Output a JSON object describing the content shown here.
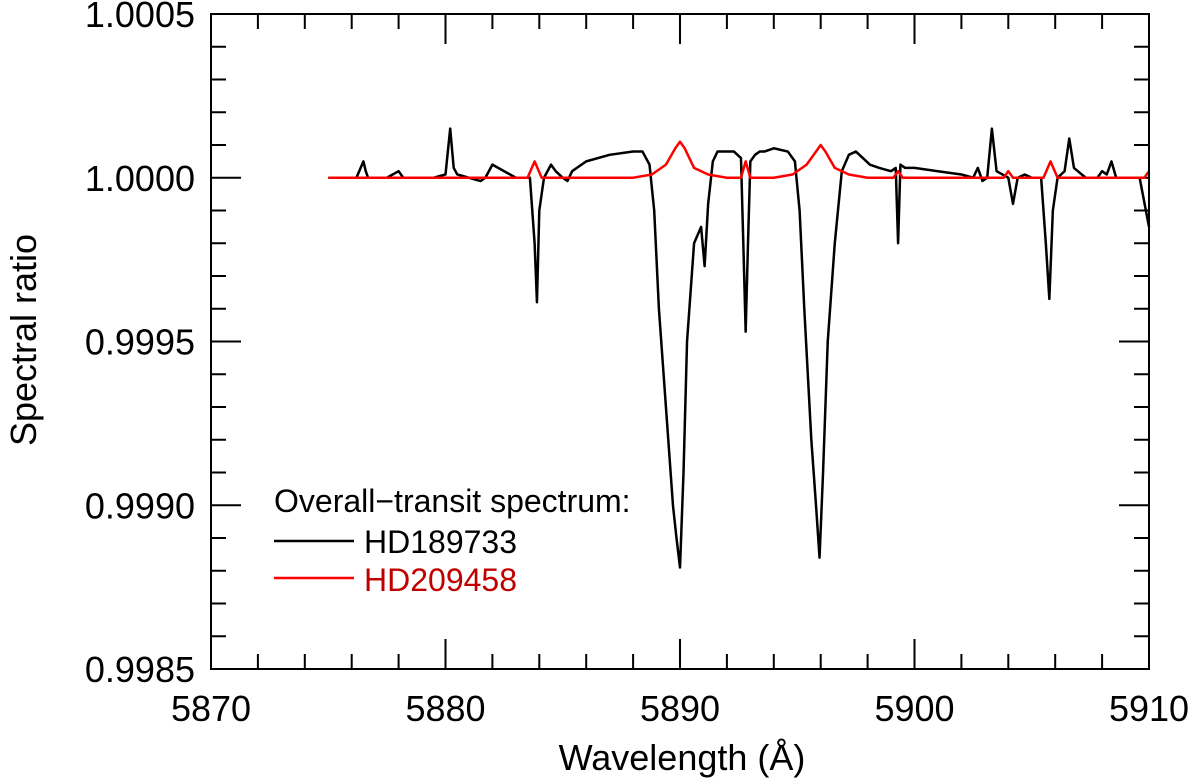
{
  "chart_data": {
    "type": "line",
    "xlabel": "Wavelength (Å)",
    "ylabel": "Spectral ratio",
    "xlim": [
      5870,
      5910
    ],
    "ylim": [
      0.9985,
      1.0005
    ],
    "x_ticks": [
      5870,
      5880,
      5890,
      5900,
      5910
    ],
    "x_tick_labels": [
      "5870",
      "5880",
      "5890",
      "5900",
      "5910"
    ],
    "y_ticks": [
      0.9985,
      0.999,
      0.9995,
      1.0,
      1.0005
    ],
    "y_tick_labels": [
      "0.9985",
      "0.9990",
      "0.9995",
      "1.0000",
      "1.0005"
    ],
    "x_minor_step": 2,
    "y_minor_step": 0.0001,
    "legend": {
      "title": "Overall−transit spectrum:",
      "placement": "lower-left"
    },
    "series": [
      {
        "name": "HD189733",
        "color": "#000000",
        "x": [
          5875.0,
          5876.2,
          5876.5,
          5876.6,
          5876.7,
          5877.5,
          5878.0,
          5878.1,
          5878.2,
          5879.5,
          5880.0,
          5880.2,
          5880.35,
          5880.5,
          5881.0,
          5881.5,
          5881.7,
          5882.0,
          5883.0,
          5883.6,
          5883.8,
          5883.9,
          5884.0,
          5884.2,
          5884.5,
          5884.7,
          5885.0,
          5885.2,
          5885.4,
          5886.0,
          5887.0,
          5888.0,
          5888.4,
          5888.7,
          5888.9,
          5889.1,
          5889.4,
          5889.7,
          5889.85,
          5890.0,
          5890.15,
          5890.3,
          5890.6,
          5890.9,
          5891.05,
          5891.2,
          5891.4,
          5891.6,
          5891.9,
          5892.3,
          5892.6,
          5892.7,
          5892.8,
          5892.9,
          5893.0,
          5893.2,
          5893.4,
          5893.6,
          5894.0,
          5894.6,
          5894.9,
          5895.1,
          5895.3,
          5895.6,
          5895.8,
          5895.95,
          5896.1,
          5896.3,
          5896.6,
          5896.9,
          5897.2,
          5897.5,
          5897.8,
          5898.1,
          5898.5,
          5899.0,
          5899.2,
          5899.3,
          5899.4,
          5899.6,
          5900.0,
          5901.0,
          5902.0,
          5902.5,
          5902.7,
          5902.9,
          5903.1,
          5903.3,
          5903.5,
          5904.0,
          5904.2,
          5904.4,
          5904.7,
          5905.0,
          5905.4,
          5905.6,
          5905.75,
          5905.9,
          5906.1,
          5906.4,
          5906.6,
          5906.8,
          5907.3,
          5907.8,
          5908.0,
          5908.2,
          5908.4,
          5908.6,
          5908.8,
          5909.2,
          5909.6,
          5910.0
        ],
        "y": [
          1.0,
          1.0,
          1.00005,
          1.00002,
          1.0,
          1.0,
          1.00002,
          1.00001,
          1.0,
          1.0,
          1.00001,
          1.00015,
          1.00003,
          1.00001,
          1.0,
          0.99999,
          1.0,
          1.00004,
          1.0,
          1.0,
          0.9998,
          0.99962,
          0.9999,
          1.0,
          1.00004,
          1.00002,
          1.0,
          0.99999,
          1.00002,
          1.00005,
          1.00007,
          1.00008,
          1.00008,
          1.00004,
          0.9999,
          0.9996,
          0.9993,
          0.999,
          0.9989,
          0.99881,
          0.9991,
          0.9995,
          0.9998,
          0.99985,
          0.99973,
          0.99992,
          1.00005,
          1.00008,
          1.00008,
          1.00008,
          1.00006,
          0.9998,
          0.99953,
          0.9998,
          1.00005,
          1.00007,
          1.00008,
          1.00008,
          1.00009,
          1.00008,
          1.00005,
          0.9999,
          0.9996,
          0.9992,
          0.999,
          0.99884,
          0.9991,
          0.9995,
          0.9998,
          1.00002,
          1.00007,
          1.00008,
          1.00006,
          1.00004,
          1.00003,
          1.00002,
          1.00003,
          0.9998,
          1.00004,
          1.00003,
          1.00003,
          1.00002,
          1.00001,
          1.0,
          1.00003,
          0.99999,
          1.0,
          1.00015,
          1.00002,
          1.0,
          0.99992,
          1.0,
          1.00001,
          1.0,
          1.0,
          0.9998,
          0.99963,
          0.9999,
          1.0,
          1.00002,
          1.00012,
          1.00003,
          1.0,
          1.0,
          1.00002,
          1.00001,
          1.00005,
          1.0,
          1.0,
          1.0,
          1.0,
          0.99985
        ]
      },
      {
        "name": "HD209458",
        "color": "#ff0000",
        "label_color": "#c00000",
        "x": [
          5875.0,
          5883.5,
          5883.8,
          5884.1,
          5885.0,
          5888.0,
          5888.8,
          5889.4,
          5889.8,
          5890.0,
          5890.2,
          5890.6,
          5891.2,
          5892.0,
          5892.6,
          5892.8,
          5893.0,
          5894.0,
          5894.8,
          5895.4,
          5895.8,
          5896.0,
          5896.2,
          5896.6,
          5897.2,
          5898.0,
          5899.1,
          5899.3,
          5899.5,
          5903.8,
          5904.0,
          5904.2,
          5905.5,
          5905.8,
          5906.1,
          5909.8,
          5910.0
        ],
        "y": [
          1.0,
          1.0,
          1.00005,
          1.0,
          1.0,
          1.0,
          1.00001,
          1.00004,
          1.00009,
          1.00011,
          1.00009,
          1.00003,
          1.00001,
          1.0,
          1.0,
          1.00005,
          1.0,
          1.0,
          1.00001,
          1.00004,
          1.00008,
          1.0001,
          1.00008,
          1.00003,
          1.00001,
          1.0,
          1.0,
          1.00002,
          1.0,
          1.0,
          1.00002,
          1.0,
          1.0,
          1.00005,
          1.0,
          1.0,
          1.00002
        ]
      }
    ]
  }
}
